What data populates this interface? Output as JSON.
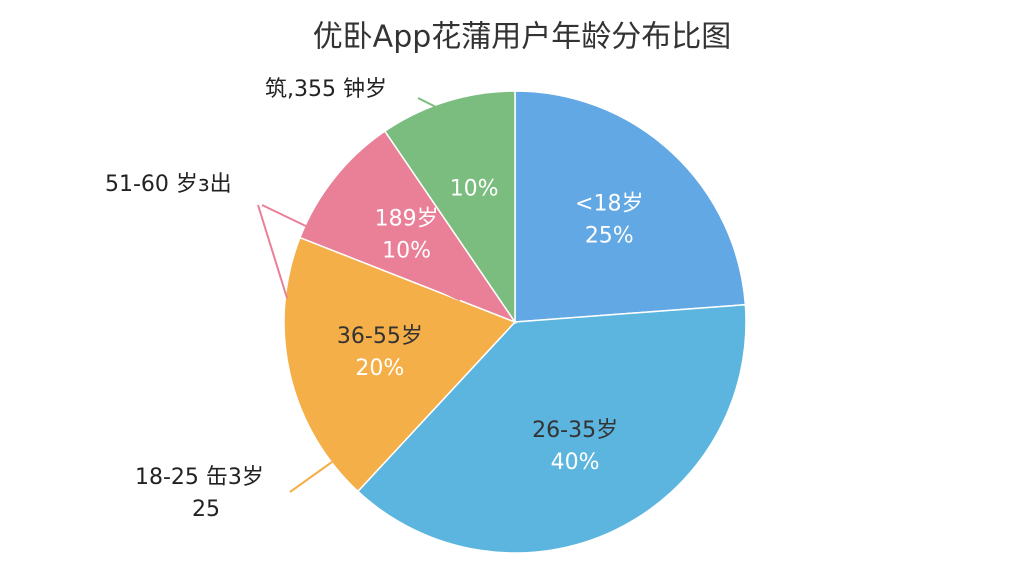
{
  "chart_data": {
    "type": "pie",
    "title": "优卧App花蒲用户年龄分布比图",
    "categories": [
      "<18岁",
      "26-35岁",
      "36-55岁",
      "189岁",
      null
    ],
    "values": [
      25,
      40,
      20,
      10,
      10
    ],
    "value_labels": [
      "25%",
      "40%",
      "20%",
      "10%",
      "10%"
    ],
    "colors": [
      "#62a8e4",
      "#5bb5de",
      "#f5af48",
      "#e98098",
      "#7bbd7f"
    ],
    "annotations": [
      "筑,355 钟岁",
      "51-60 岁з出",
      "18-25 缶3岁",
      "25"
    ]
  }
}
